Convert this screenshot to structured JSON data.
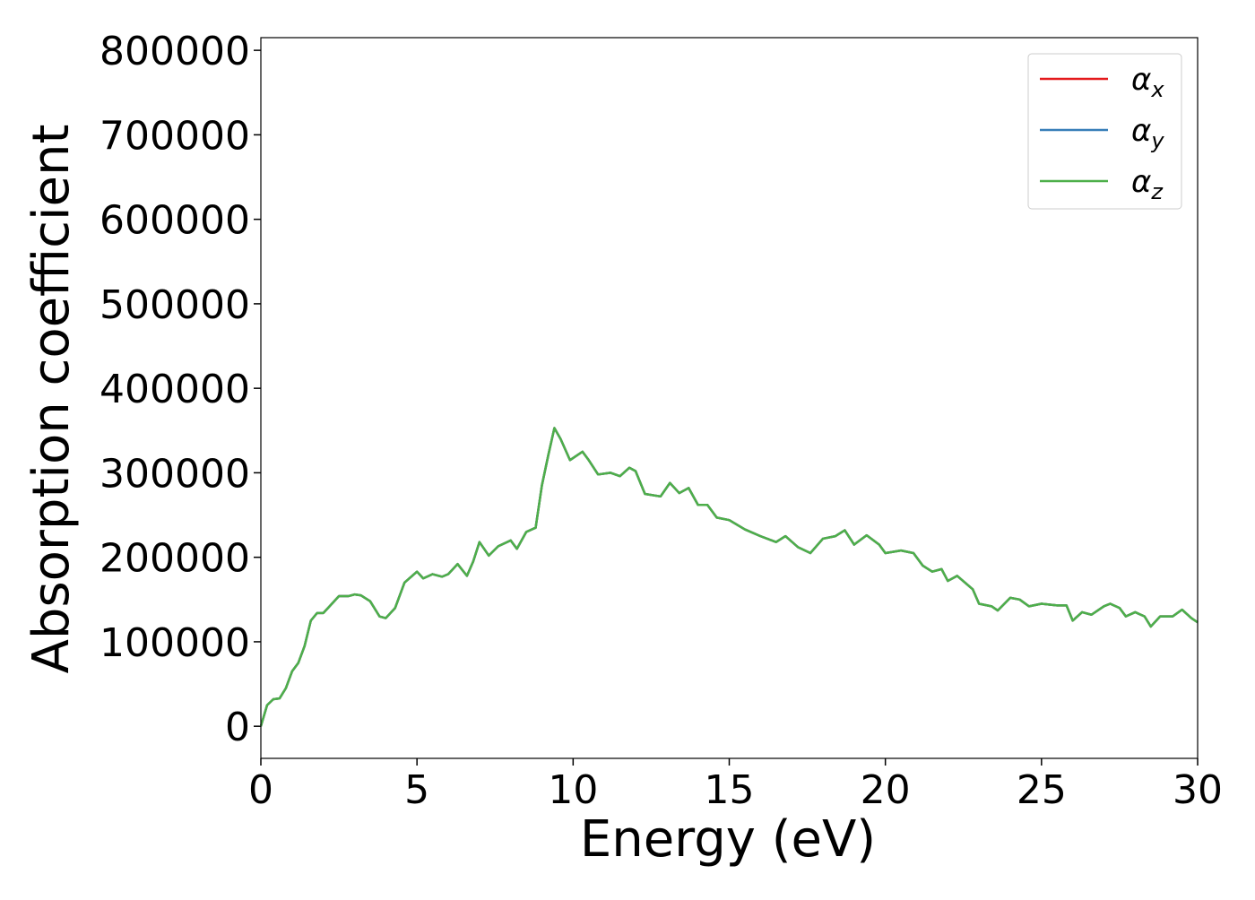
{
  "chart_data": {
    "type": "line",
    "xlabel": "Energy (eV)",
    "ylabel": "Absorption coefficient",
    "x": [
      0,
      0.2,
      0.4,
      0.6,
      0.8,
      1.0,
      1.2,
      1.4,
      1.6,
      1.8,
      2.0,
      2.2,
      2.5,
      2.8,
      3.0,
      3.2,
      3.5,
      3.8,
      4.0,
      4.3,
      4.6,
      5.0,
      5.2,
      5.5,
      5.8,
      6.0,
      6.3,
      6.6,
      6.8,
      7.0,
      7.3,
      7.6,
      8.0,
      8.2,
      8.5,
      8.8,
      9.0,
      9.2,
      9.4,
      9.6,
      9.9,
      10.3,
      10.5,
      10.8,
      11.2,
      11.5,
      11.8,
      12.0,
      12.3,
      12.8,
      13.1,
      13.4,
      13.7,
      14.0,
      14.3,
      14.6,
      15.0,
      15.5,
      16.0,
      16.5,
      16.8,
      17.2,
      17.6,
      18.0,
      18.4,
      18.7,
      19.0,
      19.4,
      19.8,
      20.0,
      20.5,
      20.9,
      21.2,
      21.5,
      21.8,
      22.0,
      22.3,
      22.8,
      23.0,
      23.4,
      23.6,
      24.0,
      24.3,
      24.6,
      25.0,
      25.5,
      25.8,
      26.0,
      26.3,
      26.6,
      27.0,
      27.2,
      27.5,
      27.7,
      28.0,
      28.3,
      28.5,
      28.8,
      29.2,
      29.5,
      29.8,
      30.0
    ],
    "series": [
      {
        "name": "αx",
        "color": "#e41a1c",
        "values": [
          0,
          25000,
          32000,
          33000,
          45000,
          65000,
          75000,
          95000,
          125000,
          134000,
          134000,
          142000,
          154000,
          154000,
          156000,
          155000,
          148000,
          130000,
          128000,
          140000,
          170000,
          183000,
          175000,
          180000,
          177000,
          180000,
          192000,
          178000,
          195000,
          218000,
          202000,
          213000,
          220000,
          210000,
          230000,
          235000,
          285000,
          320000,
          353000,
          340000,
          315000,
          325000,
          315000,
          298000,
          300000,
          296000,
          306000,
          302000,
          275000,
          272000,
          288000,
          276000,
          282000,
          262000,
          262000,
          247000,
          244000,
          233000,
          225000,
          218000,
          225000,
          212000,
          205000,
          222000,
          225000,
          232000,
          215000,
          226000,
          215000,
          205000,
          208000,
          205000,
          190000,
          183000,
          186000,
          172000,
          178000,
          162000,
          145000,
          142000,
          137000,
          152000,
          150000,
          142000,
          145000,
          143000,
          143000,
          125000,
          135000,
          132000,
          142000,
          145000,
          140000,
          130000,
          135000,
          130000,
          118000,
          130000,
          130000,
          138000,
          128000,
          123000
        ]
      },
      {
        "name": "αy",
        "color": "#377eb8",
        "values": [
          0,
          25000,
          32000,
          33000,
          45000,
          65000,
          75000,
          95000,
          125000,
          134000,
          134000,
          142000,
          154000,
          154000,
          156000,
          155000,
          148000,
          130000,
          128000,
          140000,
          170000,
          183000,
          175000,
          180000,
          177000,
          180000,
          192000,
          178000,
          195000,
          218000,
          202000,
          213000,
          220000,
          210000,
          230000,
          235000,
          285000,
          320000,
          353000,
          340000,
          315000,
          325000,
          315000,
          298000,
          300000,
          296000,
          306000,
          302000,
          275000,
          272000,
          288000,
          276000,
          282000,
          262000,
          262000,
          247000,
          244000,
          233000,
          225000,
          218000,
          225000,
          212000,
          205000,
          222000,
          225000,
          232000,
          215000,
          226000,
          215000,
          205000,
          208000,
          205000,
          190000,
          183000,
          186000,
          172000,
          178000,
          162000,
          145000,
          142000,
          137000,
          152000,
          150000,
          142000,
          145000,
          143000,
          143000,
          125000,
          135000,
          132000,
          142000,
          145000,
          140000,
          130000,
          135000,
          130000,
          118000,
          130000,
          130000,
          138000,
          128000,
          123000
        ]
      },
      {
        "name": "αz",
        "color": "#4daf4a",
        "values": [
          0,
          25000,
          32000,
          33000,
          45000,
          65000,
          75000,
          95000,
          125000,
          134000,
          134000,
          142000,
          154000,
          154000,
          156000,
          155000,
          148000,
          130000,
          128000,
          140000,
          170000,
          183000,
          175000,
          180000,
          177000,
          180000,
          192000,
          178000,
          195000,
          218000,
          202000,
          213000,
          220000,
          210000,
          230000,
          235000,
          285000,
          320000,
          353000,
          340000,
          315000,
          325000,
          315000,
          298000,
          300000,
          296000,
          306000,
          302000,
          275000,
          272000,
          288000,
          276000,
          282000,
          262000,
          262000,
          247000,
          244000,
          233000,
          225000,
          218000,
          225000,
          212000,
          205000,
          222000,
          225000,
          232000,
          215000,
          226000,
          215000,
          205000,
          208000,
          205000,
          190000,
          183000,
          186000,
          172000,
          178000,
          162000,
          145000,
          142000,
          137000,
          152000,
          150000,
          142000,
          145000,
          143000,
          143000,
          125000,
          135000,
          132000,
          142000,
          145000,
          140000,
          130000,
          135000,
          130000,
          118000,
          130000,
          130000,
          138000,
          128000,
          123000
        ]
      }
    ],
    "xlim": [
      0,
      30
    ],
    "xticks": [
      0,
      5,
      10,
      15,
      20,
      25,
      30
    ],
    "ylim": [
      -38000,
      815000
    ],
    "yticks": [
      0,
      100000,
      200000,
      300000,
      400000,
      500000,
      600000,
      700000,
      800000
    ],
    "legend": "upper right",
    "grid": false
  }
}
